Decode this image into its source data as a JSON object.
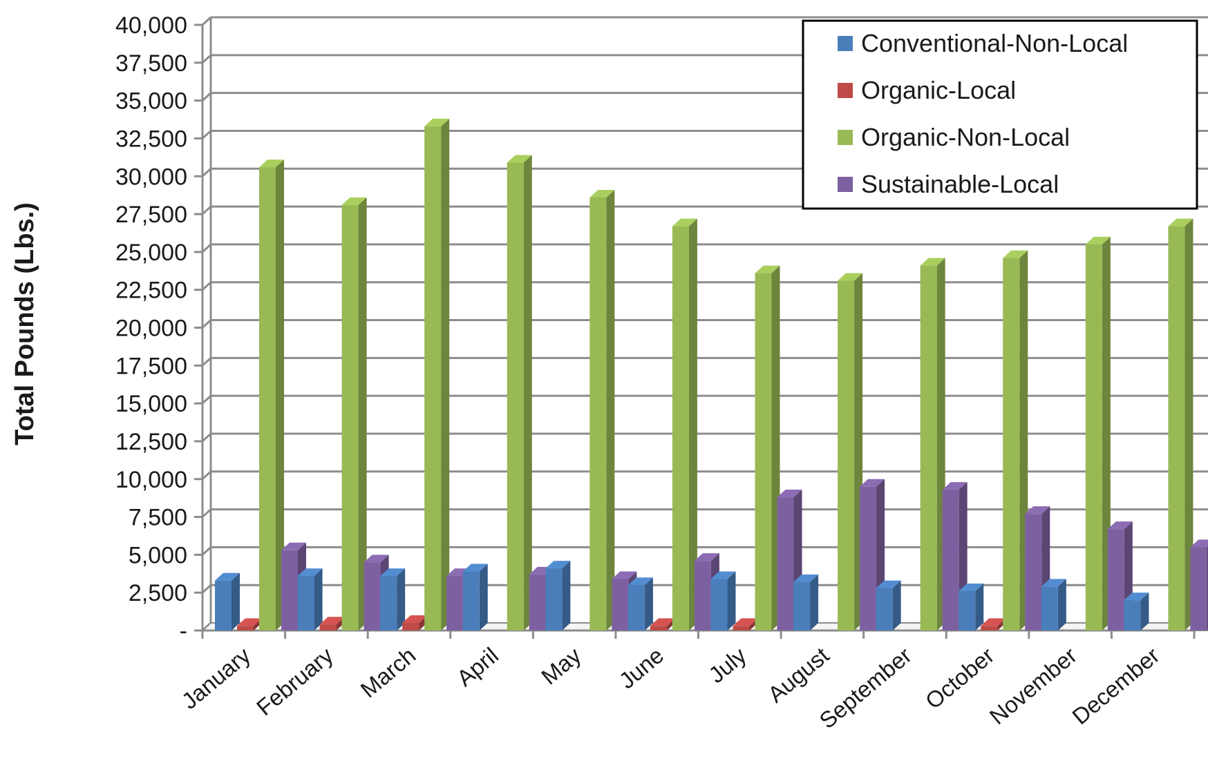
{
  "chart_data": {
    "type": "bar",
    "title": "",
    "xlabel": "",
    "ylabel": "Total Pounds (Lbs.)",
    "ylim": [
      0,
      40000
    ],
    "y_ticks": [
      0,
      2500,
      5000,
      7500,
      10000,
      12500,
      15000,
      17500,
      20000,
      22500,
      25000,
      27500,
      30000,
      32500,
      35000,
      37500,
      40000
    ],
    "y_tick_labels": [
      "-",
      "2,500",
      "5,000",
      "7,500",
      "10,000",
      "12,500",
      "15,000",
      "17,500",
      "20,000",
      "22,500",
      "25,000",
      "27,500",
      "30,000",
      "32,500",
      "35,000",
      "37,500",
      "40,000"
    ],
    "categories": [
      "January",
      "February",
      "March",
      "April",
      "May",
      "June",
      "July",
      "August",
      "September",
      "October",
      "November",
      "December"
    ],
    "series": [
      {
        "name": "Conventional-Non-Local",
        "color": "#4a7ebb",
        "values": [
          3300,
          3600,
          3600,
          3900,
          4100,
          3000,
          3400,
          3200,
          2800,
          2600,
          2900,
          2000
        ]
      },
      {
        "name": "Organic-Local",
        "color": "#be4b48",
        "values": [
          300,
          400,
          500,
          0,
          0,
          300,
          300,
          0,
          0,
          300,
          0,
          0
        ]
      },
      {
        "name": "Organic-Non-Local",
        "color": "#98b954",
        "values": [
          30600,
          28100,
          33300,
          30900,
          28600,
          26700,
          23600,
          23100,
          24100,
          24600,
          25500,
          26700
        ]
      },
      {
        "name": "Sustainable-Local",
        "color": "#7d60a0",
        "values": [
          5300,
          4500,
          3600,
          3700,
          3400,
          4600,
          8800,
          9500,
          9300,
          7700,
          6700,
          5500
        ]
      }
    ],
    "grid": true,
    "legend_position": "top-right",
    "style": "3d-clustered-column"
  }
}
